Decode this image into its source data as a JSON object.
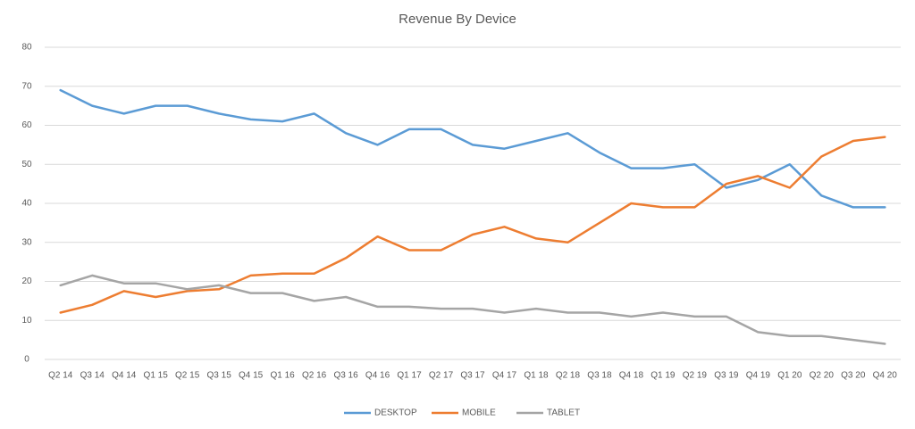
{
  "chart_data": {
    "type": "line",
    "title": "Revenue By Device",
    "categories": [
      "Q2 14",
      "Q3 14",
      "Q4 14",
      "Q1 15",
      "Q2 15",
      "Q3 15",
      "Q4 15",
      "Q1 16",
      "Q2 16",
      "Q3 16",
      "Q4 16",
      "Q1 17",
      "Q2 17",
      "Q3 17",
      "Q4 17",
      "Q1 18",
      "Q2 18",
      "Q3 18",
      "Q4 18",
      "Q1 19",
      "Q2 19",
      "Q3 19",
      "Q4 19",
      "Q1 20",
      "Q2 20",
      "Q3 20",
      "Q4 20"
    ],
    "series": [
      {
        "name": "DESKTOP",
        "color": "#5b9bd5",
        "values": [
          69,
          65,
          63,
          65,
          65,
          63,
          61.5,
          61,
          63,
          58,
          55,
          59,
          59,
          55,
          54,
          56,
          58,
          53,
          49,
          49,
          50,
          44,
          46,
          50,
          42,
          39,
          39
        ]
      },
      {
        "name": "MOBILE",
        "color": "#ed7d31",
        "values": [
          12,
          14,
          17.5,
          16,
          17.5,
          18,
          21.5,
          22,
          22,
          26,
          31.5,
          28,
          28,
          32,
          34,
          31,
          30,
          35,
          40,
          39,
          39,
          45,
          47,
          44,
          52,
          56,
          57
        ]
      },
      {
        "name": "TABLET",
        "color": "#a5a5a5",
        "values": [
          19,
          21.5,
          19.5,
          19.5,
          18,
          19,
          17,
          17,
          15,
          16,
          13.5,
          13.5,
          13,
          13,
          12,
          13,
          12,
          12,
          11,
          12,
          11,
          11,
          7,
          6,
          6,
          5,
          4
        ]
      }
    ],
    "ylim": [
      0,
      80
    ],
    "yticks": [
      0,
      10,
      20,
      30,
      40,
      50,
      60,
      70,
      80
    ],
    "grid": true,
    "legend": "bottom"
  }
}
